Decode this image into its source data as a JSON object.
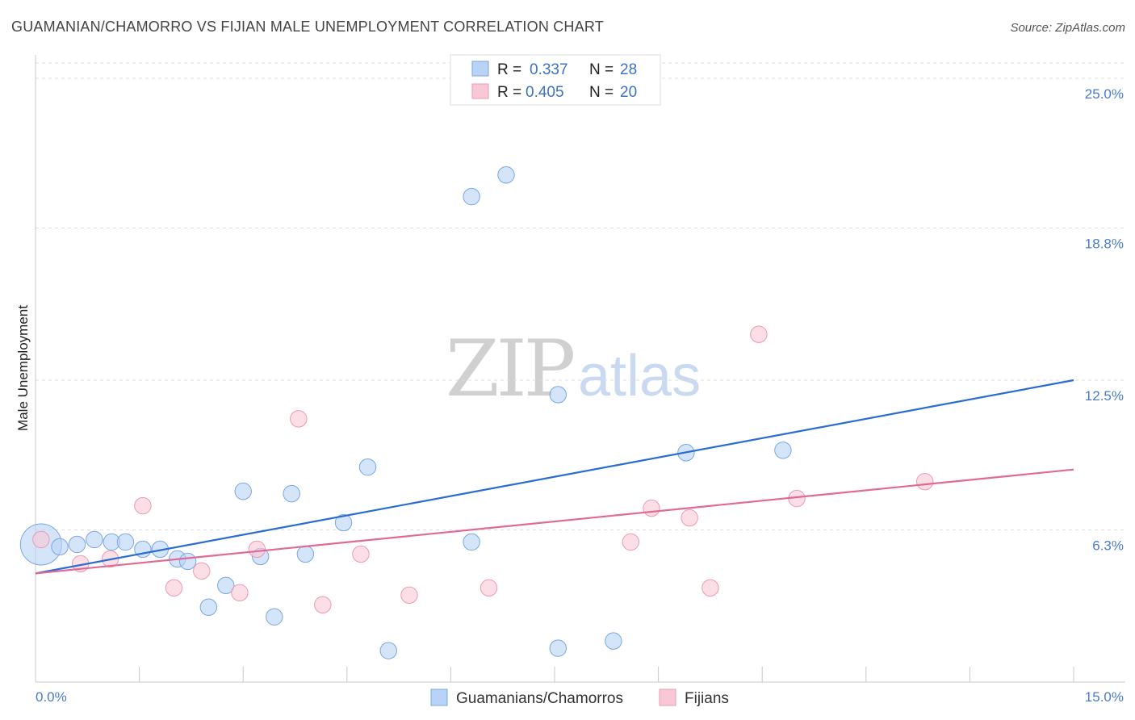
{
  "chart_data": {
    "type": "scatter",
    "title": "GUAMANIAN/CHAMORRO VS FIJIAN MALE UNEMPLOYMENT CORRELATION CHART",
    "source": "Source: ZipAtlas.com",
    "ylabel": "Male Unemployment",
    "xlim": [
      0,
      15
    ],
    "ylim": [
      0,
      25
    ],
    "y_ticks": [
      {
        "value": 6.3,
        "label": "6.3%"
      },
      {
        "value": 12.5,
        "label": "12.5%"
      },
      {
        "value": 18.8,
        "label": "18.8%"
      },
      {
        "value": 25.0,
        "label": "25.0%"
      }
    ],
    "x_tick_labels": {
      "min": "0.0%",
      "max": "15.0%"
    },
    "watermark": {
      "zip": "ZIP",
      "atlas": "atlas"
    },
    "legend": {
      "r_label": "R =",
      "n_label": "N =",
      "entries": [
        {
          "r": "0.337",
          "n": "28"
        },
        {
          "r": "0.405",
          "n": "20"
        }
      ]
    },
    "series": [
      {
        "name": "Guamanians/Chamorros",
        "fill": "#b8d3f5",
        "stroke": "#7aa6e0",
        "line_color": "#2a6dd2",
        "trend": [
          [
            0,
            4.5
          ],
          [
            15,
            12.5
          ]
        ],
        "points": [
          [
            0.08,
            5.7,
            3
          ],
          [
            0.35,
            5.6,
            1.2
          ],
          [
            0.6,
            5.7,
            1.2
          ],
          [
            0.85,
            5.9,
            1.2
          ],
          [
            1.1,
            5.8,
            1.2
          ],
          [
            1.3,
            5.8,
            1.2
          ],
          [
            1.55,
            5.5,
            1.2
          ],
          [
            1.8,
            5.5,
            1.2
          ],
          [
            2.05,
            5.1,
            1.2
          ],
          [
            2.2,
            5.0,
            1.2
          ],
          [
            2.5,
            3.1,
            1.2
          ],
          [
            2.75,
            4.0,
            1.2
          ],
          [
            3.0,
            7.9,
            1.2
          ],
          [
            3.25,
            5.2,
            1.2
          ],
          [
            3.45,
            2.7,
            1.2
          ],
          [
            3.7,
            7.8,
            1.2
          ],
          [
            3.9,
            5.3,
            1.2
          ],
          [
            4.45,
            6.6,
            1.2
          ],
          [
            4.8,
            8.9,
            1.2
          ],
          [
            5.1,
            1.3,
            1.2
          ],
          [
            6.3,
            5.8,
            1.2
          ],
          [
            6.3,
            20.1,
            1.2
          ],
          [
            6.8,
            21.0,
            1.2
          ],
          [
            7.55,
            1.4,
            1.2
          ],
          [
            7.55,
            11.9,
            1.2
          ],
          [
            8.35,
            1.7,
            1.2
          ],
          [
            9.4,
            9.5,
            1.2
          ],
          [
            10.8,
            9.6,
            1.2
          ]
        ]
      },
      {
        "name": "Fijians",
        "fill": "#f9c8d6",
        "stroke": "#ec9ab2",
        "line_color": "#e06a96",
        "trend": [
          [
            0,
            4.5
          ],
          [
            15,
            8.8
          ]
        ],
        "points": [
          [
            0.08,
            5.9,
            1.2
          ],
          [
            0.65,
            4.9,
            1.2
          ],
          [
            1.08,
            5.1,
            1.2
          ],
          [
            1.55,
            7.3,
            1.2
          ],
          [
            2.0,
            3.9,
            1.2
          ],
          [
            2.4,
            4.6,
            1.2
          ],
          [
            2.95,
            3.7,
            1.2
          ],
          [
            3.2,
            5.5,
            1.2
          ],
          [
            3.8,
            10.9,
            1.2
          ],
          [
            4.15,
            3.2,
            1.2
          ],
          [
            4.7,
            5.3,
            1.2
          ],
          [
            5.4,
            3.6,
            1.2
          ],
          [
            6.55,
            3.9,
            1.2
          ],
          [
            8.6,
            5.8,
            1.2
          ],
          [
            8.9,
            7.2,
            1.2
          ],
          [
            9.45,
            6.8,
            1.2
          ],
          [
            9.75,
            3.9,
            1.2
          ],
          [
            10.45,
            14.4,
            1.2
          ],
          [
            11.0,
            7.6,
            1.2
          ],
          [
            12.85,
            8.3,
            1.2
          ]
        ]
      }
    ]
  }
}
